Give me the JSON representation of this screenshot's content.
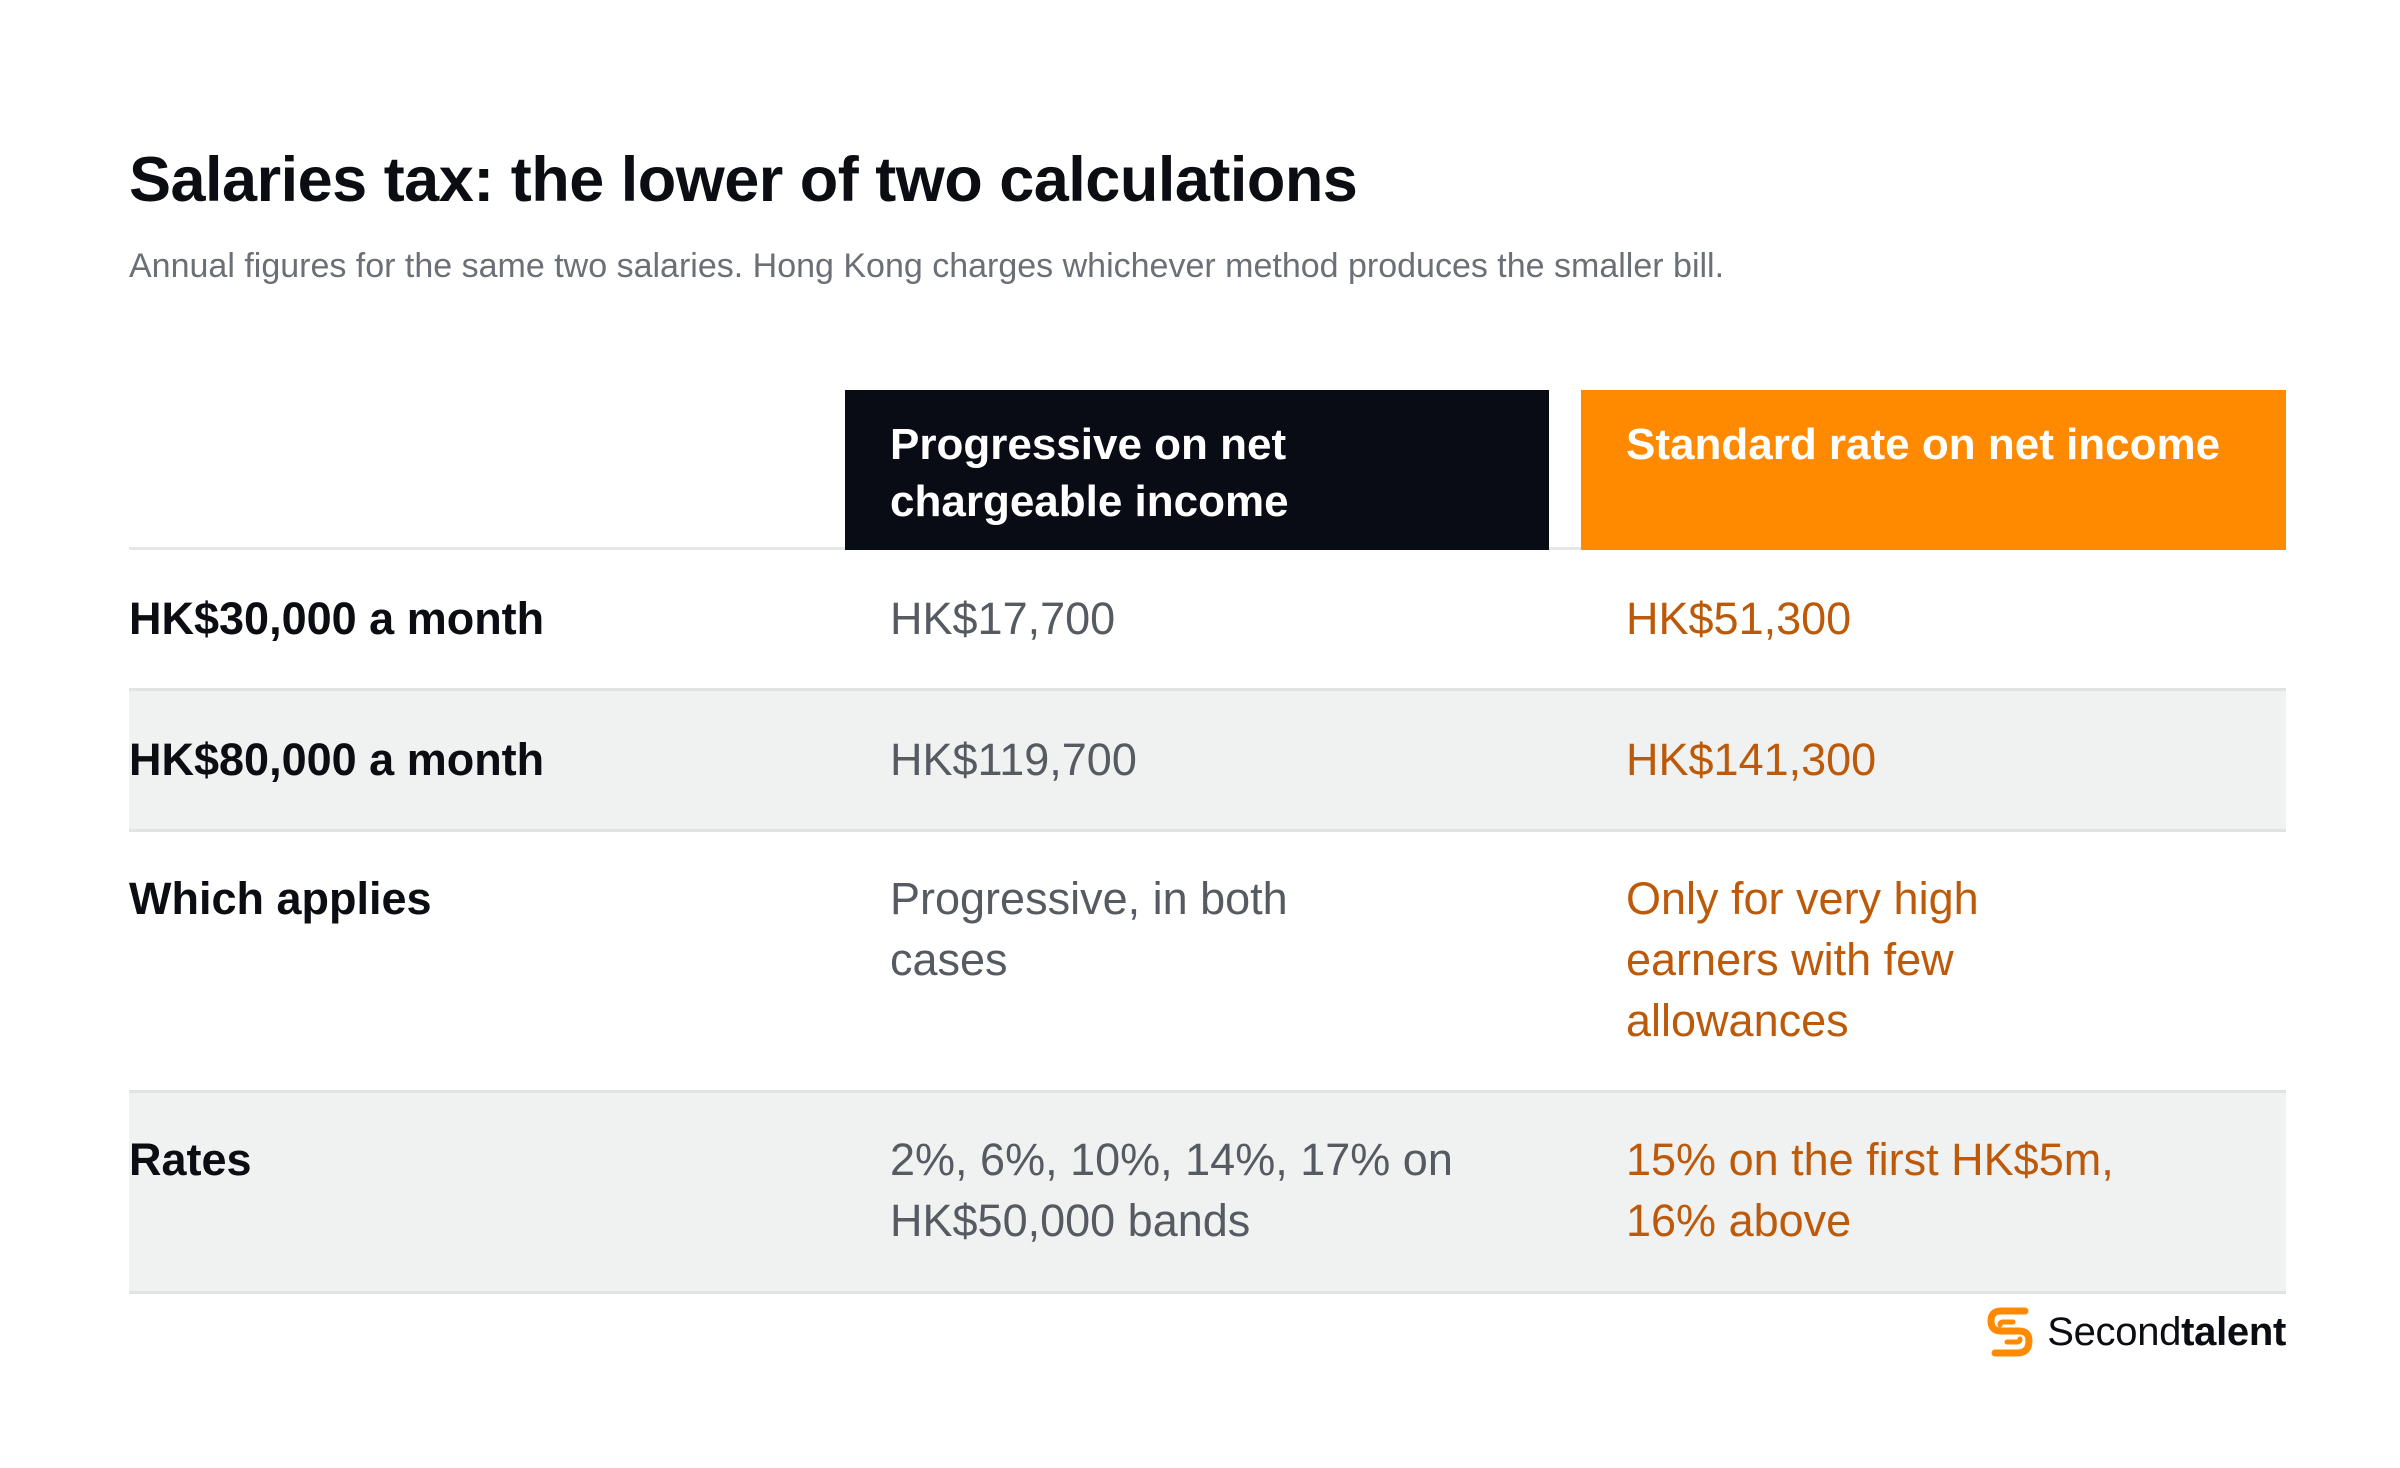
{
  "title": "Salaries tax: the lower of two calculations",
  "subtitle": "Annual figures for the same two salaries. Hong Kong charges whichever method produces the smaller bill.",
  "table": {
    "columns": {
      "progressive": "Progressive on net chargeable income",
      "standard": "Standard rate on net income"
    },
    "rows": [
      {
        "label": "HK$30,000 a month",
        "progressive": "HK$17,700",
        "standard": "HK$51,300"
      },
      {
        "label": "HK$80,000 a month",
        "progressive": "HK$119,700",
        "standard": "HK$141,300"
      },
      {
        "label": "Which applies",
        "progressive": "Progressive, in both cases",
        "standard": "Only for very high earners with few allowances"
      },
      {
        "label": "Rates",
        "progressive": "2%, 6%, 10%, 14%, 17% on HK$50,000 bands",
        "standard": "15% on the first HK$5m, 16% above"
      }
    ]
  },
  "brand": {
    "name_regular": "Second",
    "name_bold": "talent",
    "icon": "secondtalent-logo-icon"
  },
  "colors": {
    "progressive_header": "#090c14",
    "standard_header": "#ff8a00",
    "standard_text": "#bd5a0a",
    "shaded_row": "#f0f1f1"
  }
}
